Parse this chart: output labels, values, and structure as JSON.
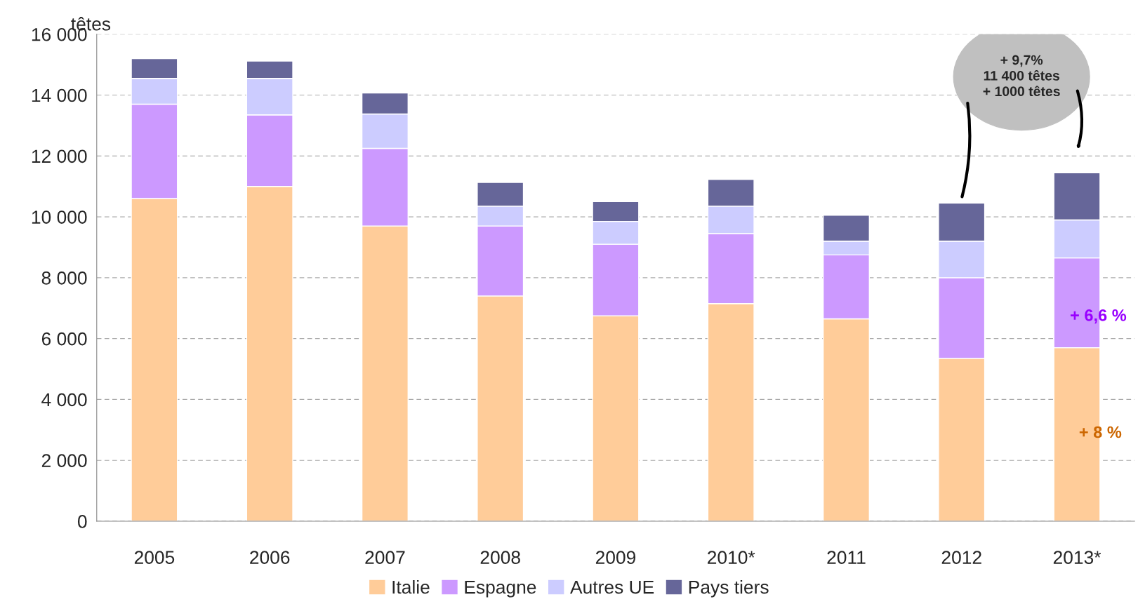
{
  "chart_data": {
    "type": "bar",
    "stacked": true,
    "ylabel": "têtes",
    "categories": [
      "2005",
      "2006",
      "2007",
      "2008",
      "2009",
      "2010*",
      "2011",
      "2012",
      "2013*"
    ],
    "series": [
      {
        "name": "Italie",
        "color": "#ffcc99",
        "values": [
          10600,
          11000,
          9700,
          7400,
          6750,
          7150,
          6650,
          5350,
          5700
        ]
      },
      {
        "name": "Espagne",
        "color": "#cc99ff",
        "values": [
          3100,
          2350,
          2550,
          2300,
          2350,
          2300,
          2100,
          2650,
          2950
        ]
      },
      {
        "name": "Autres UE",
        "color": "#ccccff",
        "values": [
          850,
          1200,
          1130,
          650,
          750,
          900,
          450,
          1200,
          1250
        ]
      },
      {
        "name": "Pays tiers",
        "color": "#666699",
        "values": [
          650,
          570,
          690,
          780,
          650,
          880,
          850,
          1250,
          1550
        ]
      }
    ],
    "ylim": [
      0,
      16000
    ],
    "yticks": [
      0,
      {
        "value": 2000,
        "label": "2 000"
      },
      {
        "value": 4000,
        "label": "4 000"
      },
      {
        "value": 6000,
        "label": "6 000"
      },
      {
        "value": 8000,
        "label": "8 000"
      },
      {
        "value": 10000,
        "label": "10 000"
      },
      {
        "value": 12000,
        "label": "12 000"
      },
      {
        "value": 14000,
        "label": "14 000"
      },
      {
        "value": 16000,
        "label": "16 000"
      }
    ],
    "grid": "y",
    "legend": "bottom",
    "annotations": [
      "+ 6,6 %",
      "+ 8 %",
      "+ 9,7%\n11 400 têtes\n+ 1000 têtes"
    ]
  }
}
